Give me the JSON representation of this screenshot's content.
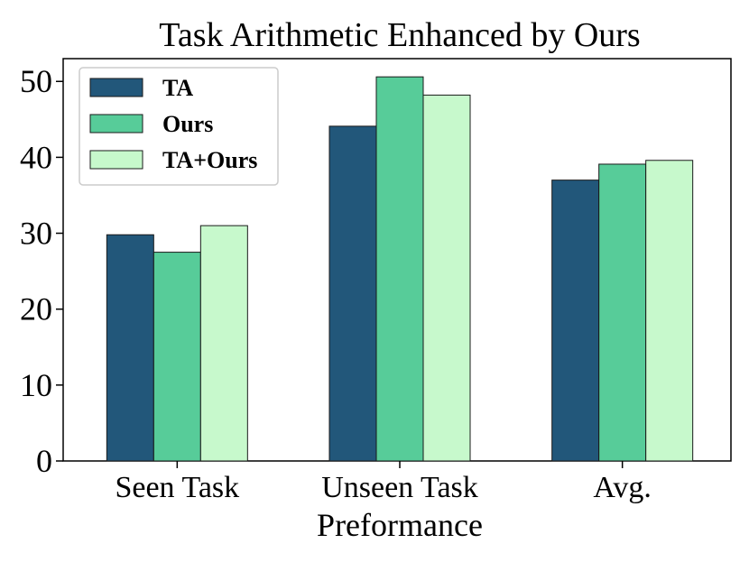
{
  "chart_data": {
    "type": "bar",
    "title": "Task Arithmetic Enhanced by Ours",
    "xlabel": "Preformance",
    "ylabel": "",
    "categories": [
      "Seen Task",
      "Unseen Task",
      "Avg."
    ],
    "series": [
      {
        "name": "TA",
        "values": [
          29.8,
          44.1,
          37.0
        ],
        "color": "#22577a"
      },
      {
        "name": "Ours",
        "values": [
          27.5,
          50.6,
          39.1
        ],
        "color": "#57cc99"
      },
      {
        "name": "TA+Ours",
        "values": [
          31.0,
          48.2,
          39.6
        ],
        "color": "#c7f9cc"
      }
    ],
    "ylim": [
      0,
      53
    ],
    "yticks": [
      0,
      10,
      20,
      30,
      40,
      50
    ],
    "grid": false,
    "legend_position": "upper-left"
  }
}
